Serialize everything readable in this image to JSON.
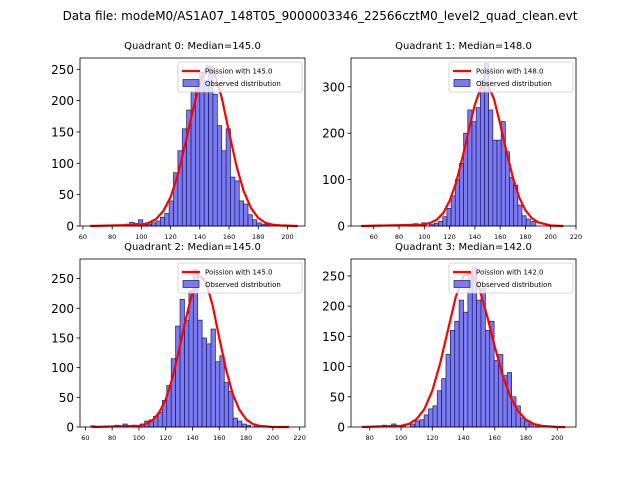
{
  "figure": {
    "suptitle": "Data file: modeM0/AS1A07_148T05_9000003346_22566cztM0_level2_quad_clean.evt"
  },
  "colors": {
    "bar_fill": "#7b7bef",
    "bar_edge": "#1a1a6e",
    "poisson_line": "#ff0000"
  },
  "chart_data": [
    {
      "type": "bar",
      "title": "Quadrant 0: Median=145.0",
      "median": 145.0,
      "legend": [
        "Poission with 145.0",
        "Observed distribution"
      ],
      "legend_position": "top-right",
      "xlim": [
        58,
        212
      ],
      "ylim": [
        0,
        268
      ],
      "xticks": [
        60,
        80,
        100,
        120,
        140,
        160,
        180,
        200
      ],
      "yticks": [
        0,
        50,
        100,
        150,
        200,
        250
      ],
      "bin_width": 3,
      "bins_start": [
        89,
        92,
        95,
        98,
        101,
        104,
        107,
        110,
        113,
        116,
        119,
        122,
        125,
        128,
        131,
        134,
        137,
        140,
        143,
        146,
        149,
        152,
        155,
        158,
        161,
        164,
        167,
        170,
        173,
        176,
        179,
        182,
        185
      ],
      "counts": [
        3,
        6,
        4,
        10,
        2,
        3,
        5,
        8,
        14,
        20,
        40,
        85,
        120,
        155,
        185,
        215,
        228,
        245,
        232,
        255,
        210,
        160,
        120,
        155,
        78,
        72,
        40,
        35,
        18,
        10,
        5,
        3,
        2
      ],
      "poisson_x": [
        65,
        100,
        105,
        110,
        115,
        120,
        125,
        130,
        135,
        140,
        145,
        150,
        155,
        160,
        165,
        170,
        175,
        180,
        185,
        190,
        195,
        207
      ],
      "poisson_y": [
        0,
        2,
        5,
        11,
        24,
        46,
        82,
        130,
        182,
        228,
        255,
        245,
        205,
        150,
        97,
        56,
        29,
        13,
        5,
        2,
        1,
        0
      ]
    },
    {
      "type": "bar",
      "title": "Quadrant 1: Median=148.0",
      "median": 148.0,
      "legend": [
        "Poission with 148.0",
        "Observed distribution"
      ],
      "legend_position": "top-right",
      "xlim": [
        42,
        220
      ],
      "ylim": [
        0,
        362
      ],
      "xticks": [
        60,
        80,
        100,
        120,
        140,
        160,
        180,
        200,
        220
      ],
      "yticks": [
        0,
        100,
        200,
        300
      ],
      "bin_width": 3.3,
      "bins_start": [
        88,
        91.3,
        98,
        104,
        108,
        111.3,
        114.6,
        117.9,
        121.2,
        124.5,
        127.8,
        131.1,
        134.4,
        137.7,
        141,
        144.3,
        147.6,
        150.9,
        154.2,
        157.5,
        160.8,
        164.1,
        167.4,
        170.7,
        174,
        177.3,
        180.6,
        185
      ],
      "counts": [
        3,
        5,
        7,
        3,
        6,
        10,
        20,
        38,
        65,
        100,
        135,
        200,
        250,
        225,
        255,
        315,
        350,
        250,
        185,
        185,
        225,
        160,
        105,
        88,
        45,
        22,
        15,
        10
      ],
      "poisson_x": [
        50,
        100,
        105,
        110,
        115,
        120,
        125,
        130,
        135,
        140,
        145,
        150,
        155,
        160,
        165,
        170,
        175,
        180,
        185,
        190,
        200,
        210
      ],
      "poisson_y": [
        0,
        3,
        7,
        14,
        28,
        54,
        92,
        145,
        205,
        262,
        300,
        305,
        275,
        220,
        160,
        105,
        62,
        34,
        17,
        8,
        1,
        0
      ]
    },
    {
      "type": "bar",
      "title": "Quadrant 2: Median=145.0",
      "median": 145.0,
      "legend": [
        "Poission with 145.0",
        "Observed distribution"
      ],
      "legend_position": "top-right",
      "xlim": [
        56,
        224
      ],
      "ylim": [
        0,
        283
      ],
      "xticks": [
        60,
        80,
        100,
        120,
        140,
        160,
        180,
        200,
        220
      ],
      "yticks": [
        0,
        50,
        100,
        150,
        200,
        250
      ],
      "bin_width": 3.3,
      "bins_start": [
        64,
        82,
        88,
        95,
        101,
        104.3,
        107.6,
        110.9,
        114.2,
        117.5,
        120.8,
        124.1,
        127.4,
        130.7,
        134,
        137.3,
        140.6,
        143.9,
        147.2,
        150.5,
        153.8,
        157.1,
        160.4,
        163.7,
        167,
        170.3,
        173.6,
        176.9,
        180.2,
        186
      ],
      "counts": [
        2,
        3,
        5,
        3,
        5,
        10,
        12,
        18,
        25,
        45,
        70,
        115,
        170,
        215,
        180,
        230,
        265,
        180,
        150,
        140,
        165,
        110,
        120,
        75,
        60,
        15,
        10,
        5,
        3,
        3
      ],
      "poisson_x": [
        65,
        100,
        105,
        110,
        115,
        120,
        125,
        130,
        135,
        140,
        145,
        150,
        155,
        160,
        165,
        170,
        175,
        180,
        185,
        190,
        200,
        212
      ],
      "poisson_y": [
        0,
        2,
        5,
        11,
        24,
        46,
        82,
        130,
        182,
        228,
        255,
        245,
        205,
        150,
        97,
        56,
        29,
        13,
        5,
        2,
        0,
        0
      ]
    },
    {
      "type": "bar",
      "title": "Quadrant 3: Median=142.0",
      "median": 142.0,
      "legend": [
        "Poission with 142.0",
        "Observed distribution"
      ],
      "legend_position": "top-right",
      "xlim": [
        68,
        212
      ],
      "ylim": [
        0,
        278
      ],
      "xticks": [
        80,
        100,
        120,
        140,
        160,
        180,
        200
      ],
      "yticks": [
        0,
        50,
        100,
        150,
        200,
        250
      ],
      "bin_width": 2.8,
      "bins_start": [
        83,
        88,
        94,
        100,
        106,
        109,
        112,
        114.8,
        117.6,
        120.4,
        123.2,
        126,
        128.8,
        131.6,
        134.4,
        137.2,
        140,
        142.8,
        145.6,
        148.4,
        151.2,
        154,
        156.8,
        159.6,
        162.4,
        165.2,
        168,
        170.8,
        173.6,
        176.4,
        179.2,
        182,
        186
      ],
      "counts": [
        2,
        3,
        5,
        3,
        5,
        10,
        12,
        20,
        30,
        35,
        60,
        80,
        120,
        160,
        175,
        210,
        190,
        255,
        265,
        210,
        230,
        160,
        175,
        110,
        120,
        85,
        90,
        50,
        35,
        15,
        10,
        5,
        3
      ],
      "poisson_x": [
        75,
        100,
        105,
        110,
        115,
        120,
        125,
        130,
        135,
        140,
        145,
        150,
        155,
        160,
        165,
        170,
        175,
        180,
        185,
        190,
        200,
        205
      ],
      "poisson_y": [
        0,
        2,
        5,
        13,
        30,
        60,
        105,
        160,
        215,
        250,
        255,
        230,
        185,
        133,
        86,
        50,
        26,
        12,
        5,
        2,
        0,
        0
      ]
    }
  ]
}
